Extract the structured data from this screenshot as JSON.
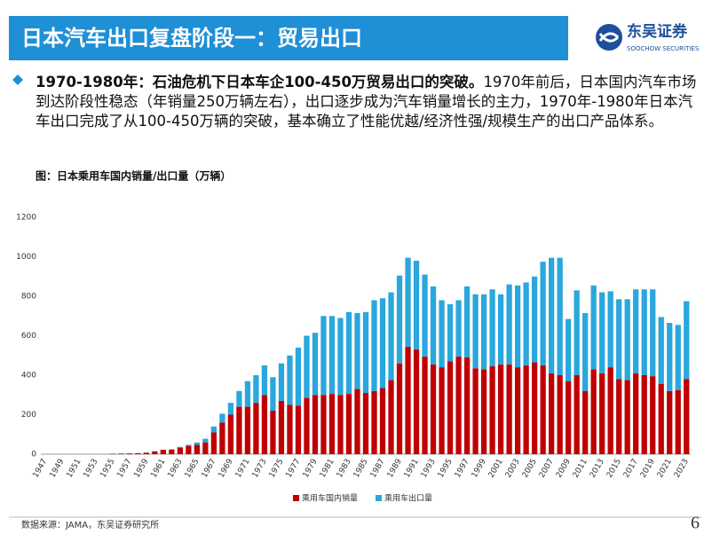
{
  "header": {
    "title": "日本汽车出口复盘阶段一：贸易出口",
    "logo_cn": "东吴证券",
    "logo_en": "SOOCHOW SECURITIES"
  },
  "text": {
    "bold": "1970-1980年：石油危机下日本车企100-450万贸易出口的突破。",
    "body": "1970年前后，日本国内汽车市场到达阶段性稳态（年销量250万辆左右），出口逐步成为汽车销量增长的主力，1970年-1980年日本汽车出口完成了从100-450万辆的突破，基本确立了性能优越/经济性强/规模生产的出口产品体系。"
  },
  "chart_data": {
    "type": "stacked_bar",
    "title": "图：日本乘用车国内销量/出口量（万辆）",
    "categories": [
      "1947",
      null,
      "1949",
      null,
      "1951",
      null,
      "1953",
      null,
      "1955",
      null,
      "1957",
      null,
      "1959",
      null,
      "1961",
      null,
      "1963",
      null,
      "1965",
      null,
      "1967",
      null,
      "1969",
      null,
      "1971",
      null,
      "1973",
      null,
      "1975",
      null,
      "1977",
      null,
      "1979",
      null,
      "1981",
      null,
      "1983",
      null,
      "1985",
      null,
      "1987",
      null,
      "1989",
      null,
      "1991",
      null,
      "1993",
      null,
      "1995",
      null,
      "1997",
      null,
      "1999",
      null,
      "2001",
      null,
      "2003",
      null,
      "2005",
      null,
      "2007",
      null,
      "2009",
      null,
      "2011",
      null,
      "2013",
      null,
      "2015",
      null,
      "2017",
      null,
      "2019",
      null,
      "2021",
      null,
      "2023"
    ],
    "series": [
      {
        "name": "乘用车国内销量",
        "color": "#c00000",
        "values": [
          0,
          0,
          0,
          0,
          0,
          0,
          0,
          0,
          2,
          3,
          4,
          5,
          7,
          14,
          22,
          23,
          33,
          42,
          47,
          60,
          110,
          160,
          200,
          240,
          240,
          260,
          300,
          220,
          270,
          250,
          245,
          285,
          300,
          300,
          305,
          300,
          305,
          330,
          310,
          320,
          335,
          375,
          460,
          545,
          530,
          495,
          455,
          440,
          470,
          495,
          490,
          435,
          430,
          445,
          455,
          455,
          440,
          450,
          465,
          450,
          410,
          400,
          370,
          400,
          320,
          430,
          410,
          440,
          380,
          375,
          410,
          400,
          395,
          355,
          320,
          325,
          380
        ]
      },
      {
        "name": "乘用车出口量",
        "color": "#2aa7dc",
        "values": [
          0,
          0,
          0,
          0,
          0,
          0,
          0,
          0,
          0,
          0,
          0,
          0,
          1,
          1,
          1,
          2,
          4,
          6,
          12,
          18,
          30,
          45,
          60,
          80,
          130,
          140,
          150,
          170,
          190,
          250,
          295,
          315,
          315,
          400,
          395,
          390,
          415,
          385,
          410,
          460,
          455,
          445,
          445,
          450,
          450,
          415,
          395,
          340,
          290,
          285,
          360,
          375,
          380,
          390,
          355,
          405,
          415,
          420,
          435,
          525,
          585,
          595,
          315,
          430,
          395,
          425,
          410,
          385,
          405,
          410,
          425,
          435,
          440,
          340,
          345,
          330,
          395
        ]
      }
    ],
    "ylim": [
      0,
      1200
    ],
    "yticks": [
      0,
      200,
      400,
      600,
      800,
      1000,
      1200
    ],
    "grid": false,
    "legend": "bottom"
  },
  "footer": {
    "source": "数据来源：JAMA，东吴证券研究所",
    "page": "6"
  }
}
